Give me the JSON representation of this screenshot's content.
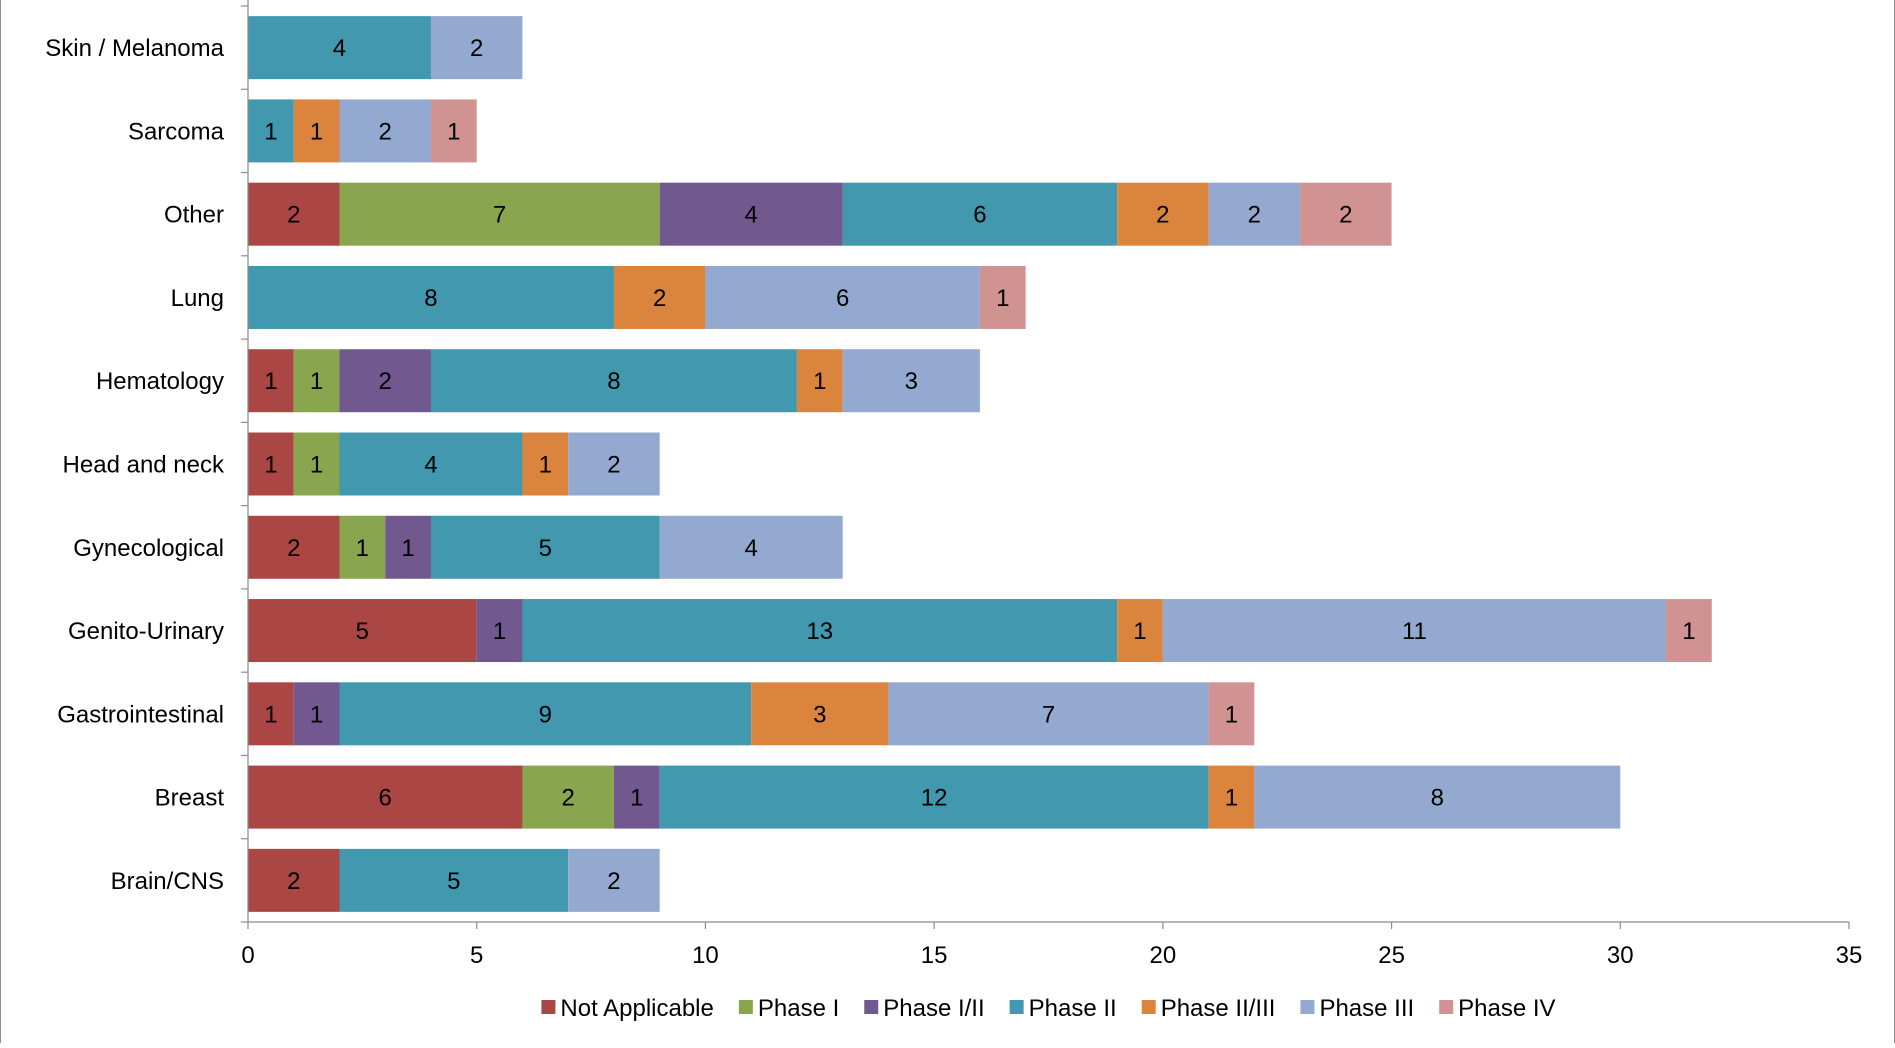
{
  "chart_data": {
    "type": "bar",
    "orientation": "horizontal",
    "stacked": true,
    "categories": [
      "Skin / Melanoma",
      "Sarcoma",
      "Other",
      "Lung",
      "Hematology",
      "Head and neck",
      "Gynecological",
      "Genito-Urinary",
      "Gastrointestinal",
      "Breast",
      "Brain/CNS"
    ],
    "series": [
      {
        "name": "Not Applicable",
        "color": "#aa4643",
        "values": [
          0,
          0,
          2,
          0,
          1,
          1,
          2,
          5,
          1,
          6,
          2
        ]
      },
      {
        "name": "Phase I",
        "color": "#89a54e",
        "values": [
          0,
          0,
          7,
          0,
          1,
          1,
          1,
          0,
          0,
          2,
          0
        ]
      },
      {
        "name": "Phase I/II",
        "color": "#71588f",
        "values": [
          0,
          0,
          4,
          0,
          2,
          0,
          1,
          1,
          1,
          1,
          0
        ]
      },
      {
        "name": "Phase II",
        "color": "#4198af",
        "values": [
          4,
          1,
          6,
          8,
          8,
          4,
          5,
          13,
          9,
          12,
          5
        ]
      },
      {
        "name": "Phase II/III",
        "color": "#db843d",
        "values": [
          0,
          1,
          2,
          2,
          1,
          1,
          0,
          1,
          3,
          1,
          0
        ]
      },
      {
        "name": "Phase III",
        "color": "#93a9cf",
        "values": [
          2,
          2,
          2,
          6,
          3,
          2,
          4,
          11,
          7,
          8,
          2
        ]
      },
      {
        "name": "Phase IV",
        "color": "#d19392",
        "values": [
          0,
          1,
          2,
          1,
          0,
          0,
          0,
          1,
          1,
          0,
          0
        ]
      }
    ],
    "xlim": [
      0,
      35
    ],
    "xticks": [
      "0",
      "5",
      "10",
      "15",
      "20",
      "25",
      "30",
      "35"
    ],
    "data_labels": true,
    "grid": false,
    "legend_position": "bottom",
    "title": "",
    "xlabel": "",
    "ylabel": ""
  }
}
